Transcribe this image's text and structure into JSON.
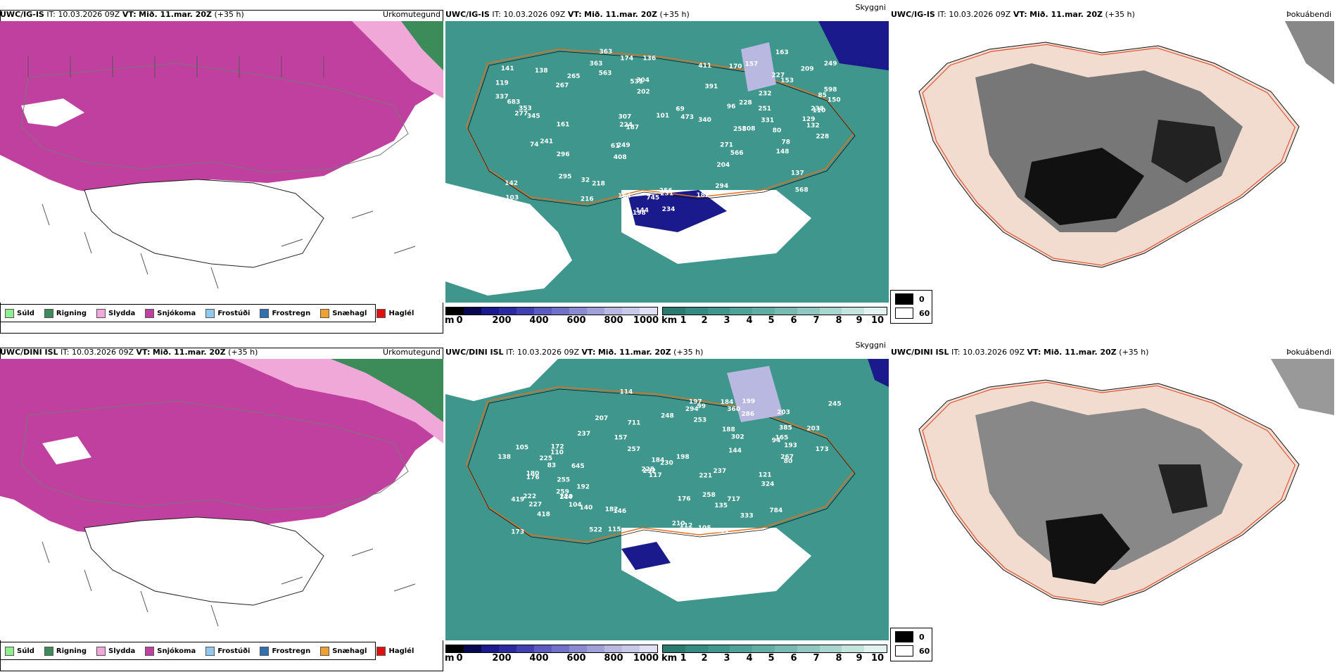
{
  "rows": [
    {
      "model": "UWC/IG-IS",
      "it_label": "IT:",
      "it_value": "10.03.2026 09Z",
      "vt_label": "VT:",
      "vt_value": "Mið. 11.mar. 20Z",
      "lead": "(+35 h)",
      "panels": {
        "precip": {
          "title": "Úrkomutegund"
        },
        "visibility": {
          "title": "Skyggni"
        },
        "fog": {
          "title": "Þokuábendi"
        }
      },
      "visibility_labels": [
        "568",
        "353",
        "209",
        "224",
        "391",
        "238",
        "161",
        "363",
        "228",
        "142",
        "295",
        "202",
        "408",
        "411",
        "531",
        "249",
        "182",
        "187",
        "331",
        "265",
        "170",
        "226",
        "137",
        "566",
        "598",
        "563",
        "61",
        "96",
        "85",
        "69",
        "110",
        "80",
        "304",
        "153",
        "249",
        "204",
        "227",
        "232",
        "103",
        "256",
        "345",
        "119",
        "136",
        "267",
        "157",
        "228",
        "683",
        "277",
        "164",
        "258",
        "218",
        "271",
        "363",
        "163",
        "141",
        "216",
        "473",
        "231",
        "174",
        "78",
        "745",
        "198",
        "307",
        "294",
        "234",
        "251",
        "132",
        "340",
        "308",
        "148",
        "337",
        "144",
        "74",
        "138",
        "101",
        "129",
        "150",
        "241",
        "296",
        "32"
      ]
    },
    {
      "model": "UWC/DINI ISL",
      "it_label": "IT:",
      "it_value": "10.03.2026 09Z",
      "vt_label": "VT:",
      "vt_value": "Mið. 11.mar. 20Z",
      "lead": "(+35 h)",
      "panels": {
        "precip": {
          "title": "Úrkomutegund"
        },
        "visibility": {
          "title": "Skyggni"
        },
        "fog": {
          "title": "Þokuábendi"
        }
      },
      "visibility_labels": [
        "418",
        "199",
        "227",
        "645",
        "188",
        "255",
        "220",
        "385",
        "302",
        "198",
        "135",
        "117",
        "114",
        "784",
        "138",
        "144",
        "115",
        "105",
        "105",
        "83",
        "228",
        "146",
        "180",
        "99",
        "192",
        "253",
        "104",
        "112",
        "221",
        "176",
        "203",
        "221",
        "140",
        "190",
        "248",
        "203",
        "197",
        "110",
        "258",
        "165",
        "717",
        "157",
        "522",
        "184",
        "257",
        "176",
        "182",
        "286",
        "225",
        "173",
        "184",
        "172",
        "230",
        "419",
        "259",
        "237",
        "210",
        "324",
        "193",
        "711",
        "360",
        "294",
        "292",
        "333",
        "267",
        "207",
        "94",
        "237",
        "144",
        "93",
        "80",
        "121",
        "245",
        "173",
        "222"
      ]
    }
  ],
  "precip_legend": [
    {
      "label": "Súld",
      "color": "#90ee90"
    },
    {
      "label": "Rigning",
      "color": "#3c8c5a"
    },
    {
      "label": "Slydda",
      "color": "#f0a8d8"
    },
    {
      "label": "Snjókoma",
      "color": "#c040a0"
    },
    {
      "label": "Frostúði",
      "color": "#90c8f0"
    },
    {
      "label": "Frostregn",
      "color": "#3070b0"
    },
    {
      "label": "Snæhagl",
      "color": "#f0a030"
    },
    {
      "label": "Haglél",
      "color": "#e01010"
    }
  ],
  "height_scale": {
    "unit": "m",
    "ticks": [
      "0",
      "200",
      "400",
      "600",
      "800",
      "1000"
    ],
    "colors": [
      "#000000",
      "#080850",
      "#1a1a8c",
      "#2a2aa0",
      "#4040b0",
      "#5a5ac0",
      "#7070c8",
      "#8a8ad0",
      "#a0a0d8",
      "#b8b8e0",
      "#c8c8e8",
      "#e0e0f4"
    ]
  },
  "km_scale": {
    "unit": "km",
    "ticks": [
      "1",
      "2",
      "3",
      "4",
      "5",
      "6",
      "7",
      "8",
      "9",
      "10"
    ],
    "colors": [
      "#2a7a70",
      "#338a80",
      "#3f968c",
      "#4ea298",
      "#62aea4",
      "#78bab2",
      "#90c8c0",
      "#a8d6cf",
      "#c4e4de",
      "#e2f2ef"
    ]
  },
  "fog_legend": [
    {
      "label": "0",
      "color": "#000000"
    },
    {
      "label": "60",
      "color": "#ffffff"
    }
  ]
}
